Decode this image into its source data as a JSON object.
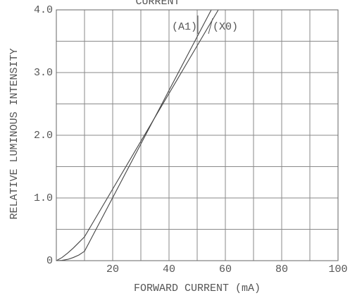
{
  "chart_data": {
    "type": "line",
    "title": "CURRENT",
    "xlabel": "FORWARD CURRENT (mA)",
    "ylabel": "RELATIVE LUMINOUS INTENSITY",
    "xlim": [
      0,
      100
    ],
    "ylim": [
      0,
      4.0
    ],
    "xticks": [
      20,
      40,
      60,
      80,
      100
    ],
    "xminor": [
      10,
      30,
      50,
      70,
      90
    ],
    "yticks": [
      0,
      {
        "value": 1.0,
        "label": "1.0"
      },
      {
        "value": 2.0,
        "label": "2.0"
      },
      {
        "value": 3.0,
        "label": "3.0"
      },
      {
        "value": 4.0,
        "label": "4.0"
      }
    ],
    "yminor": [
      0.5,
      1.5,
      2.5,
      3.5
    ],
    "grid": true,
    "series": [
      {
        "name": "(A1)",
        "color": "#444444",
        "x": [
          0,
          2,
          4,
          6,
          8,
          10,
          12,
          55
        ],
        "values": [
          0,
          0.005,
          0.02,
          0.05,
          0.09,
          0.15,
          0.32,
          4.0
        ]
      },
      {
        "name": "(X0)",
        "color": "#444444",
        "x": [
          0,
          2,
          4,
          6,
          8,
          10,
          57.5
        ],
        "values": [
          0,
          0.05,
          0.12,
          0.2,
          0.29,
          0.38,
          4.0
        ]
      }
    ]
  }
}
